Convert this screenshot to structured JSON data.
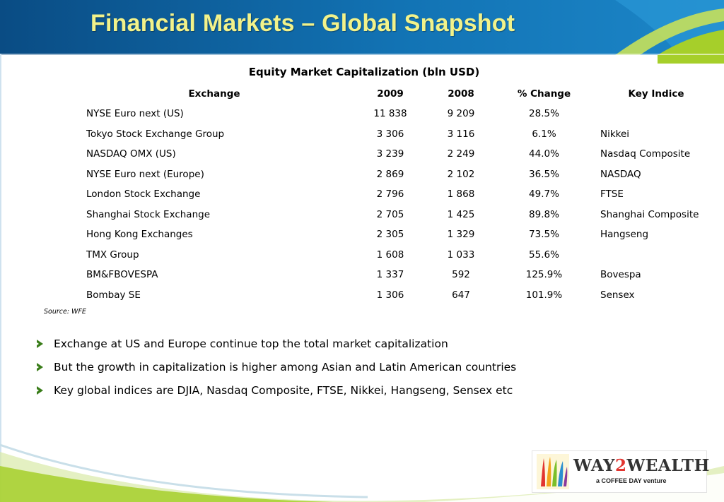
{
  "header": {
    "title": "Financial Markets – Global Snapshot"
  },
  "table": {
    "title": "Equity Market Capitalization (bln USD)",
    "columns": [
      "Exchange",
      "2009",
      "2008",
      "% Change",
      "Key Indice"
    ],
    "rows": [
      [
        "NYSE Euro next (US)",
        "11 838",
        "9 209",
        "28.5%",
        ""
      ],
      [
        "Tokyo Stock Exchange Group",
        "3 306",
        "3 116",
        "6.1%",
        "Nikkei"
      ],
      [
        "NASDAQ OMX (US)",
        "3 239",
        "2 249",
        "44.0%",
        "Nasdaq Composite"
      ],
      [
        "NYSE Euro next (Europe)",
        "2 869",
        "2 102",
        "36.5%",
        "NASDAQ"
      ],
      [
        "London Stock Exchange",
        "2 796",
        "1 868",
        "49.7%",
        "FTSE"
      ],
      [
        "Shanghai Stock Exchange",
        "2 705",
        "1 425",
        "89.8%",
        "Shanghai Composite"
      ],
      [
        "Hong Kong Exchanges",
        "2 305",
        "1 329",
        "73.5%",
        "Hangseng"
      ],
      [
        "TMX Group",
        "1 608",
        "1 033",
        "55.6%",
        ""
      ],
      [
        "BM&FBOVESPA",
        "1 337",
        "592",
        "125.9%",
        "Bovespa"
      ],
      [
        "Bombay SE",
        "1 306",
        "647",
        "101.9%",
        "Sensex"
      ]
    ],
    "source": "Source: WFE"
  },
  "bullets": [
    "Exchange at US and Europe continue top the total market capitalization",
    "But the growth in capitalization is higher among Asian and Latin American countries",
    "Key global indices are DJIA, Nasdaq Composite, FTSE, Nikkei, Hangseng, Sensex etc"
  ],
  "logo": {
    "name_part1": "WAY",
    "name_part2": "2",
    "name_part3": "WEALTH",
    "tagline": "a COFFEE DAY venture"
  },
  "colors": {
    "header_blue": "#0f6aa8",
    "header_dark": "#0b4f86",
    "title_yellow": "#f2f28a",
    "accent_green": "#a6cf2a",
    "bullet_green": "#3a7d1a"
  }
}
